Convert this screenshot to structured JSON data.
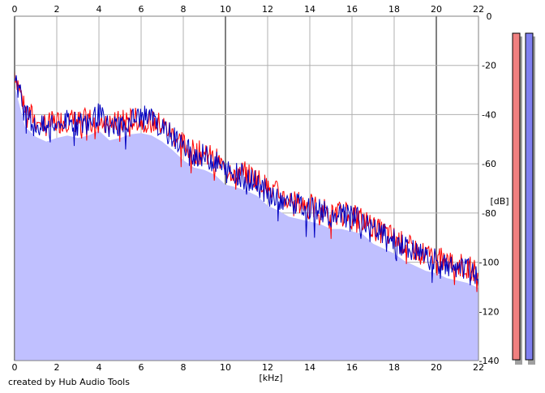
{
  "footer": {
    "credit": "created by Hub Audio Tools"
  },
  "chart_data": {
    "type": "area",
    "xlabel": "[kHz]",
    "ylabel": "[dB]",
    "xlim": [
      0,
      22
    ],
    "ylim": [
      -140,
      0
    ],
    "xticks": [
      0,
      2,
      4,
      6,
      8,
      10,
      12,
      14,
      16,
      18,
      20,
      22
    ],
    "yticks": [
      0,
      -20,
      -40,
      -60,
      -80,
      -100,
      -120,
      -140
    ],
    "grid": true,
    "fill_color": "#c0c0ff",
    "colors": {
      "left": "#ff0000",
      "right": "#0000c0"
    },
    "x": [
      0,
      0.5,
      1,
      1.5,
      2,
      2.5,
      3,
      3.5,
      4,
      4.5,
      5,
      5.5,
      6,
      6.5,
      7,
      7.5,
      8,
      8.5,
      9,
      9.5,
      10,
      10.5,
      11,
      11.5,
      12,
      12.5,
      13,
      13.5,
      14,
      14.5,
      15,
      15.5,
      16,
      16.5,
      17,
      17.5,
      18,
      18.5,
      19,
      19.5,
      20,
      20.5,
      21,
      21.5,
      22
    ],
    "series": [
      {
        "values": [
          -22,
          -38,
          -42,
          -44,
          -43,
          -42,
          -43,
          -42,
          -41,
          -44,
          -43,
          -42,
          -42,
          -43,
          -44,
          -48,
          -52,
          -55,
          -56,
          -58,
          -62,
          -63,
          -64,
          -66,
          -70,
          -72,
          -75,
          -76,
          -77,
          -78,
          -80,
          -80,
          -81,
          -82,
          -86,
          -88,
          -90,
          -93,
          -95,
          -97,
          -98,
          -100,
          -101,
          -102,
          -104
        ]
      },
      {
        "values": [
          -23,
          -40,
          -44,
          -46,
          -44,
          -43,
          -44,
          -43,
          -40,
          -45,
          -44,
          -42,
          -41,
          -42,
          -46,
          -49,
          -53,
          -56,
          -57,
          -59,
          -63,
          -64,
          -66,
          -68,
          -72,
          -74,
          -76,
          -77,
          -78,
          -79,
          -81,
          -81,
          -82,
          -83,
          -87,
          -89,
          -91,
          -94,
          -96,
          -98,
          -99,
          -101,
          -102,
          -103,
          -105
        ]
      }
    ],
    "vu_meters": {
      "left_color": "#f08080",
      "right_color": "#8080f0"
    }
  }
}
